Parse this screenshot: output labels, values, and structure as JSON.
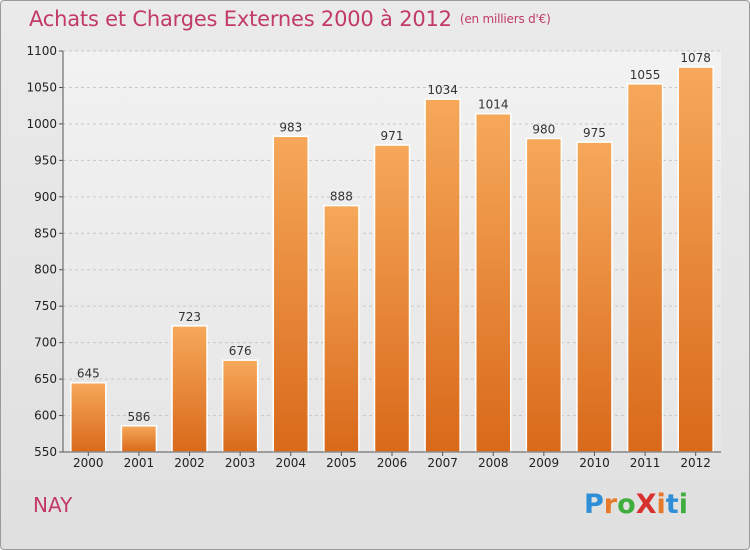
{
  "title": "Achats et Charges Externes 2000 à 2012",
  "subtitle": "(en milliers d'€)",
  "commune": "NAY",
  "logo": {
    "text": "ProXiti",
    "letters": [
      {
        "char": "P",
        "color": "#2e8fd6"
      },
      {
        "char": "r",
        "color": "#e8792a"
      },
      {
        "char": "o",
        "color": "#3fae3f"
      },
      {
        "char": "X",
        "color": "#d6302f"
      },
      {
        "char": "i",
        "color": "#e8792a"
      },
      {
        "char": "t",
        "color": "#2e8fd6"
      },
      {
        "char": "i",
        "color": "#3fae3f"
      }
    ]
  },
  "chart_data": {
    "type": "bar",
    "categories": [
      "2000",
      "2001",
      "2002",
      "2003",
      "2004",
      "2005",
      "2006",
      "2007",
      "2008",
      "2009",
      "2010",
      "2011",
      "2012"
    ],
    "values": [
      645,
      586,
      723,
      676,
      983,
      888,
      971,
      1034,
      1014,
      980,
      975,
      1055,
      1078
    ],
    "title": "Achats et Charges Externes 2000 à 2012",
    "subtitle": "(en milliers d'€)",
    "ylim": [
      550,
      1100
    ],
    "yticks": [
      550,
      600,
      650,
      700,
      750,
      800,
      850,
      900,
      950,
      1000,
      1050,
      1100
    ],
    "grid": true,
    "bar_color_top": "#f6a85a",
    "bar_color_bottom": "#d9691a",
    "label_color": "#333333",
    "axis_text_color": "#222222"
  }
}
